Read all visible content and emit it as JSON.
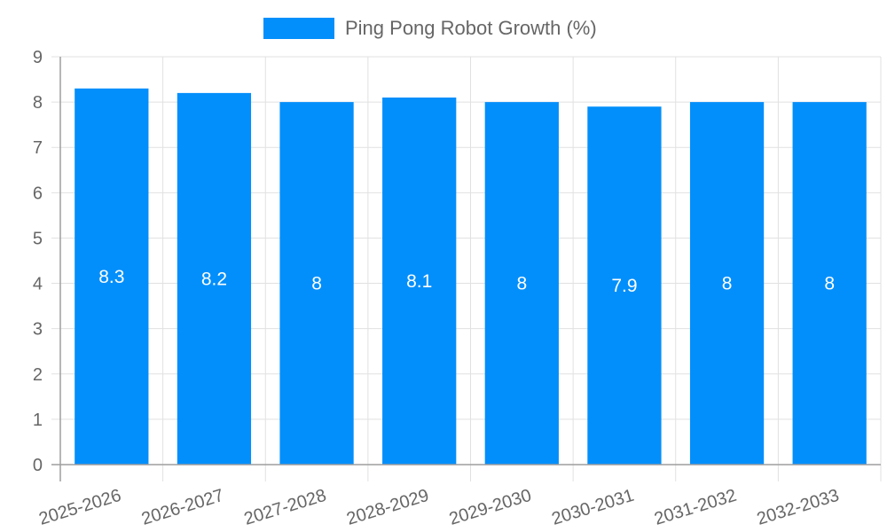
{
  "chart_data": {
    "type": "bar",
    "title": "",
    "xlabel": "",
    "ylabel": "",
    "categories": [
      "2025-2026",
      "2026-2027",
      "2027-2028",
      "2028-2029",
      "2029-2030",
      "2030-2031",
      "2031-2032",
      "2032-2033"
    ],
    "series": [
      {
        "name": "Ping Pong Robot Growth (%)",
        "color": "#038ffb",
        "values": [
          8.3,
          8.2,
          8,
          8.1,
          8,
          7.9,
          8,
          8
        ]
      }
    ],
    "ylim": [
      0,
      9
    ],
    "yticks": [
      0,
      1,
      2,
      3,
      4,
      5,
      6,
      7,
      8,
      9
    ],
    "grid": true,
    "legend_position": "top",
    "data_labels": [
      "8.3",
      "8.2",
      "8",
      "8.1",
      "8",
      "7.9",
      "8",
      "8"
    ]
  },
  "legend": {
    "label": "Ping Pong Robot Growth (%)",
    "color": "#038ffb"
  }
}
